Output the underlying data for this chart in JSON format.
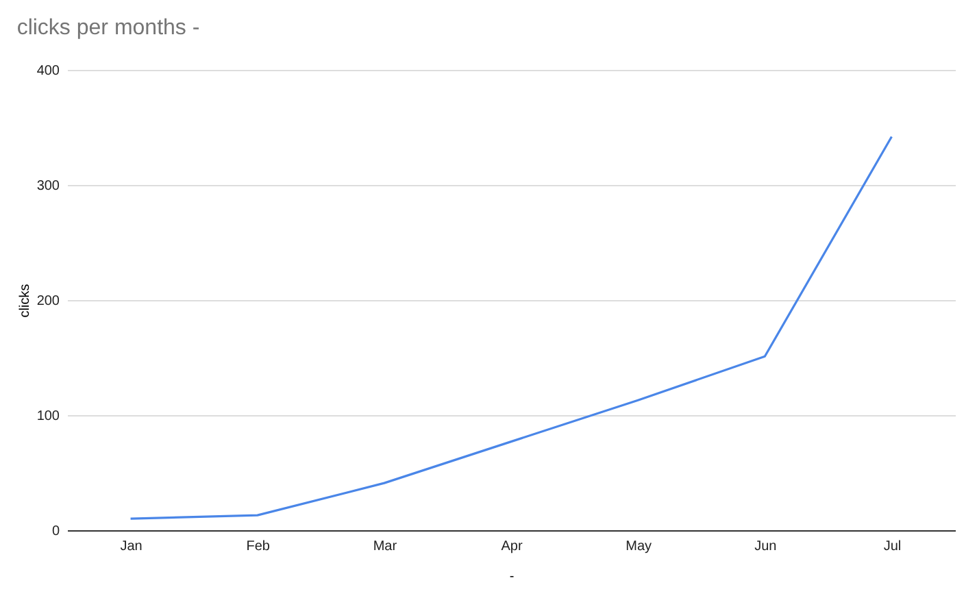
{
  "chart_data": {
    "type": "line",
    "title": "clicks per months -",
    "xlabel": "-",
    "ylabel": "clicks",
    "categories": [
      "Jan",
      "Feb",
      "Mar",
      "Apr",
      "May",
      "Jun",
      "Jul"
    ],
    "series": [
      {
        "color": "#4a86e8",
        "values": [
          10,
          13,
          41,
          77,
          113,
          151,
          342
        ]
      }
    ],
    "ylim": [
      0,
      400
    ],
    "yticks": [
      0,
      100,
      200,
      300,
      400
    ],
    "grid": "y",
    "marker": "none",
    "line_style": "solid"
  }
}
